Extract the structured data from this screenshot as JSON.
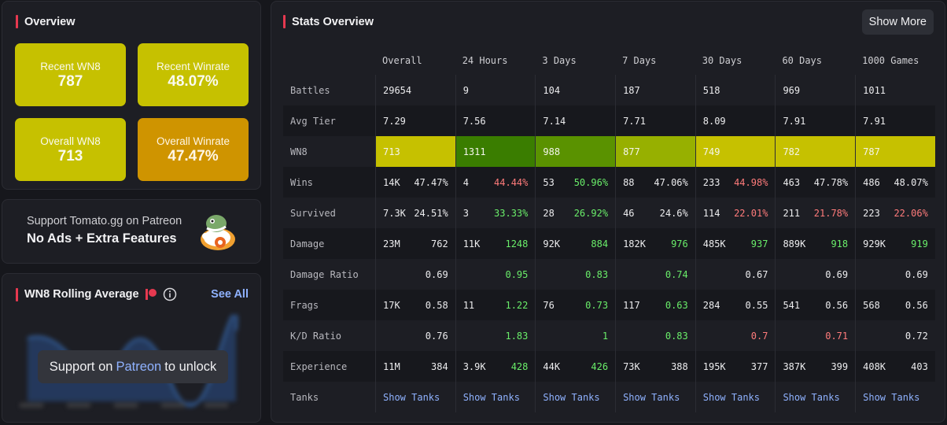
{
  "overview": {
    "title": "Overview",
    "tiles": [
      {
        "label": "Recent WN8",
        "value": "787",
        "color": "#c6c100"
      },
      {
        "label": "Recent Winrate",
        "value": "48.07%",
        "color": "#c6c100"
      },
      {
        "label": "Overall WN8",
        "value": "713",
        "color": "#c6c100"
      },
      {
        "label": "Overall Winrate",
        "value": "47.47%",
        "color": "#cf9400"
      }
    ]
  },
  "patreon": {
    "line1": "Support Tomato.gg on Patreon",
    "line2": "No Ads + Extra Features",
    "icon": "tomato-mascot-icon"
  },
  "rolling": {
    "title": "WN8 Rolling Average",
    "see_all": "See All",
    "unlock_prefix": "Support on",
    "unlock_link": "Patreon",
    "unlock_suffix": "to unlock"
  },
  "stats": {
    "title": "Stats Overview",
    "show_more": "Show More",
    "columns": [
      "Overall",
      "24 Hours",
      "3 Days",
      "7 Days",
      "30 Days",
      "60 Days",
      "1000 Games"
    ],
    "rows": [
      {
        "label": "Battles",
        "cells": [
          {
            "a": "29654"
          },
          {
            "a": "9"
          },
          {
            "a": "104"
          },
          {
            "a": "187"
          },
          {
            "a": "518"
          },
          {
            "a": "969"
          },
          {
            "a": "1011"
          }
        ]
      },
      {
        "label": "Avg Tier",
        "cells": [
          {
            "a": "7.29"
          },
          {
            "a": "7.56"
          },
          {
            "a": "7.14"
          },
          {
            "a": "7.71"
          },
          {
            "a": "8.09"
          },
          {
            "a": "7.91"
          },
          {
            "a": "7.91"
          }
        ]
      },
      {
        "label": "WN8",
        "cells": [
          {
            "a": "713",
            "bg": "#c6c100"
          },
          {
            "a": "1311",
            "bg": "#3a7d00"
          },
          {
            "a": "988",
            "bg": "#5a9200"
          },
          {
            "a": "877",
            "bg": "#97b000"
          },
          {
            "a": "749",
            "bg": "#c6c100"
          },
          {
            "a": "782",
            "bg": "#c6c100"
          },
          {
            "a": "787",
            "bg": "#c6c100"
          }
        ]
      },
      {
        "label": "Wins",
        "cells": [
          {
            "a": "14K",
            "b": "47.47%",
            "c": "w"
          },
          {
            "a": "4",
            "b": "44.44%",
            "c": "r"
          },
          {
            "a": "53",
            "b": "50.96%",
            "c": "g"
          },
          {
            "a": "88",
            "b": "47.06%",
            "c": "w"
          },
          {
            "a": "233",
            "b": "44.98%",
            "c": "r"
          },
          {
            "a": "463",
            "b": "47.78%",
            "c": "w"
          },
          {
            "a": "486",
            "b": "48.07%",
            "c": "w"
          }
        ]
      },
      {
        "label": "Survived",
        "cells": [
          {
            "a": "7.3K",
            "b": "24.51%",
            "c": "w"
          },
          {
            "a": "3",
            "b": "33.33%",
            "c": "g"
          },
          {
            "a": "28",
            "b": "26.92%",
            "c": "g"
          },
          {
            "a": "46",
            "b": "24.6%",
            "c": "w"
          },
          {
            "a": "114",
            "b": "22.01%",
            "c": "r"
          },
          {
            "a": "211",
            "b": "21.78%",
            "c": "r"
          },
          {
            "a": "223",
            "b": "22.06%",
            "c": "r"
          }
        ]
      },
      {
        "label": "Damage",
        "cells": [
          {
            "a": "23M",
            "b": "762",
            "c": "w"
          },
          {
            "a": "11K",
            "b": "1248",
            "c": "g"
          },
          {
            "a": "92K",
            "b": "884",
            "c": "g"
          },
          {
            "a": "182K",
            "b": "976",
            "c": "g"
          },
          {
            "a": "485K",
            "b": "937",
            "c": "g"
          },
          {
            "a": "889K",
            "b": "918",
            "c": "g"
          },
          {
            "a": "929K",
            "b": "919",
            "c": "g"
          }
        ]
      },
      {
        "label": "Damage Ratio",
        "cells": [
          {
            "b": "0.69",
            "c": "w"
          },
          {
            "b": "0.95",
            "c": "g"
          },
          {
            "b": "0.83",
            "c": "g"
          },
          {
            "b": "0.74",
            "c": "g"
          },
          {
            "b": "0.67",
            "c": "w"
          },
          {
            "b": "0.69",
            "c": "w"
          },
          {
            "b": "0.69",
            "c": "w"
          }
        ]
      },
      {
        "label": "Frags",
        "cells": [
          {
            "a": "17K",
            "b": "0.58",
            "c": "w"
          },
          {
            "a": "11",
            "b": "1.22",
            "c": "g"
          },
          {
            "a": "76",
            "b": "0.73",
            "c": "g"
          },
          {
            "a": "117",
            "b": "0.63",
            "c": "g"
          },
          {
            "a": "284",
            "b": "0.55",
            "c": "w"
          },
          {
            "a": "541",
            "b": "0.56",
            "c": "w"
          },
          {
            "a": "568",
            "b": "0.56",
            "c": "w"
          }
        ]
      },
      {
        "label": "K/D Ratio",
        "cells": [
          {
            "b": "0.76",
            "c": "w"
          },
          {
            "b": "1.83",
            "c": "g"
          },
          {
            "b": "1",
            "c": "g"
          },
          {
            "b": "0.83",
            "c": "g"
          },
          {
            "b": "0.7",
            "c": "r"
          },
          {
            "b": "0.71",
            "c": "r"
          },
          {
            "b": "0.72",
            "c": "w"
          }
        ]
      },
      {
        "label": "Experience",
        "cells": [
          {
            "a": "11M",
            "b": "384",
            "c": "w"
          },
          {
            "a": "3.9K",
            "b": "428",
            "c": "g"
          },
          {
            "a": "44K",
            "b": "426",
            "c": "g"
          },
          {
            "a": "73K",
            "b": "388",
            "c": "w"
          },
          {
            "a": "195K",
            "b": "377",
            "c": "w"
          },
          {
            "a": "387K",
            "b": "399",
            "c": "w"
          },
          {
            "a": "408K",
            "b": "403",
            "c": "w"
          }
        ]
      },
      {
        "label": "Tanks",
        "cells": [
          {
            "link": "Show Tanks"
          },
          {
            "link": "Show Tanks"
          },
          {
            "link": "Show Tanks"
          },
          {
            "link": "Show Tanks"
          },
          {
            "link": "Show Tanks"
          },
          {
            "link": "Show Tanks"
          },
          {
            "link": "Show Tanks"
          }
        ]
      }
    ]
  }
}
